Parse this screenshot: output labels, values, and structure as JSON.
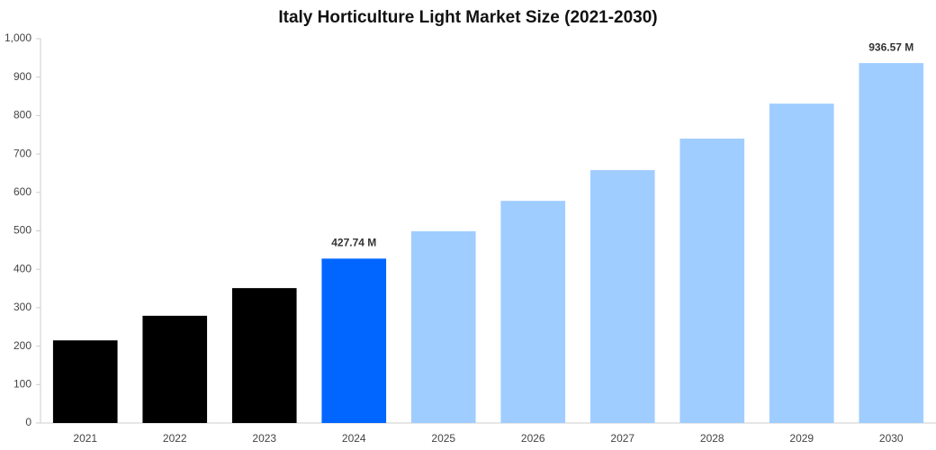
{
  "chart_data": {
    "type": "bar",
    "title": "Italy Horticulture Light Market Size (2021-2030)",
    "categories": [
      "2021",
      "2022",
      "2023",
      "2024",
      "2025",
      "2026",
      "2027",
      "2028",
      "2029",
      "2030"
    ],
    "values": [
      215,
      279,
      351,
      427.74,
      499,
      578,
      658,
      740,
      831,
      936.57
    ],
    "value_labels": [
      null,
      null,
      null,
      "427.74 M",
      null,
      null,
      null,
      null,
      null,
      "936.57 M"
    ],
    "colors": [
      "#000000",
      "#000000",
      "#000000",
      "#0066ff",
      "#a0cdff",
      "#a0cdff",
      "#a0cdff",
      "#a0cdff",
      "#a0cdff",
      "#a0cdff"
    ],
    "ylim": [
      0,
      1000
    ],
    "yticks": [
      0,
      100,
      200,
      300,
      400,
      500,
      600,
      700,
      800,
      900,
      {
        "value": 1000,
        "label": "1,000"
      }
    ],
    "grid": false
  }
}
